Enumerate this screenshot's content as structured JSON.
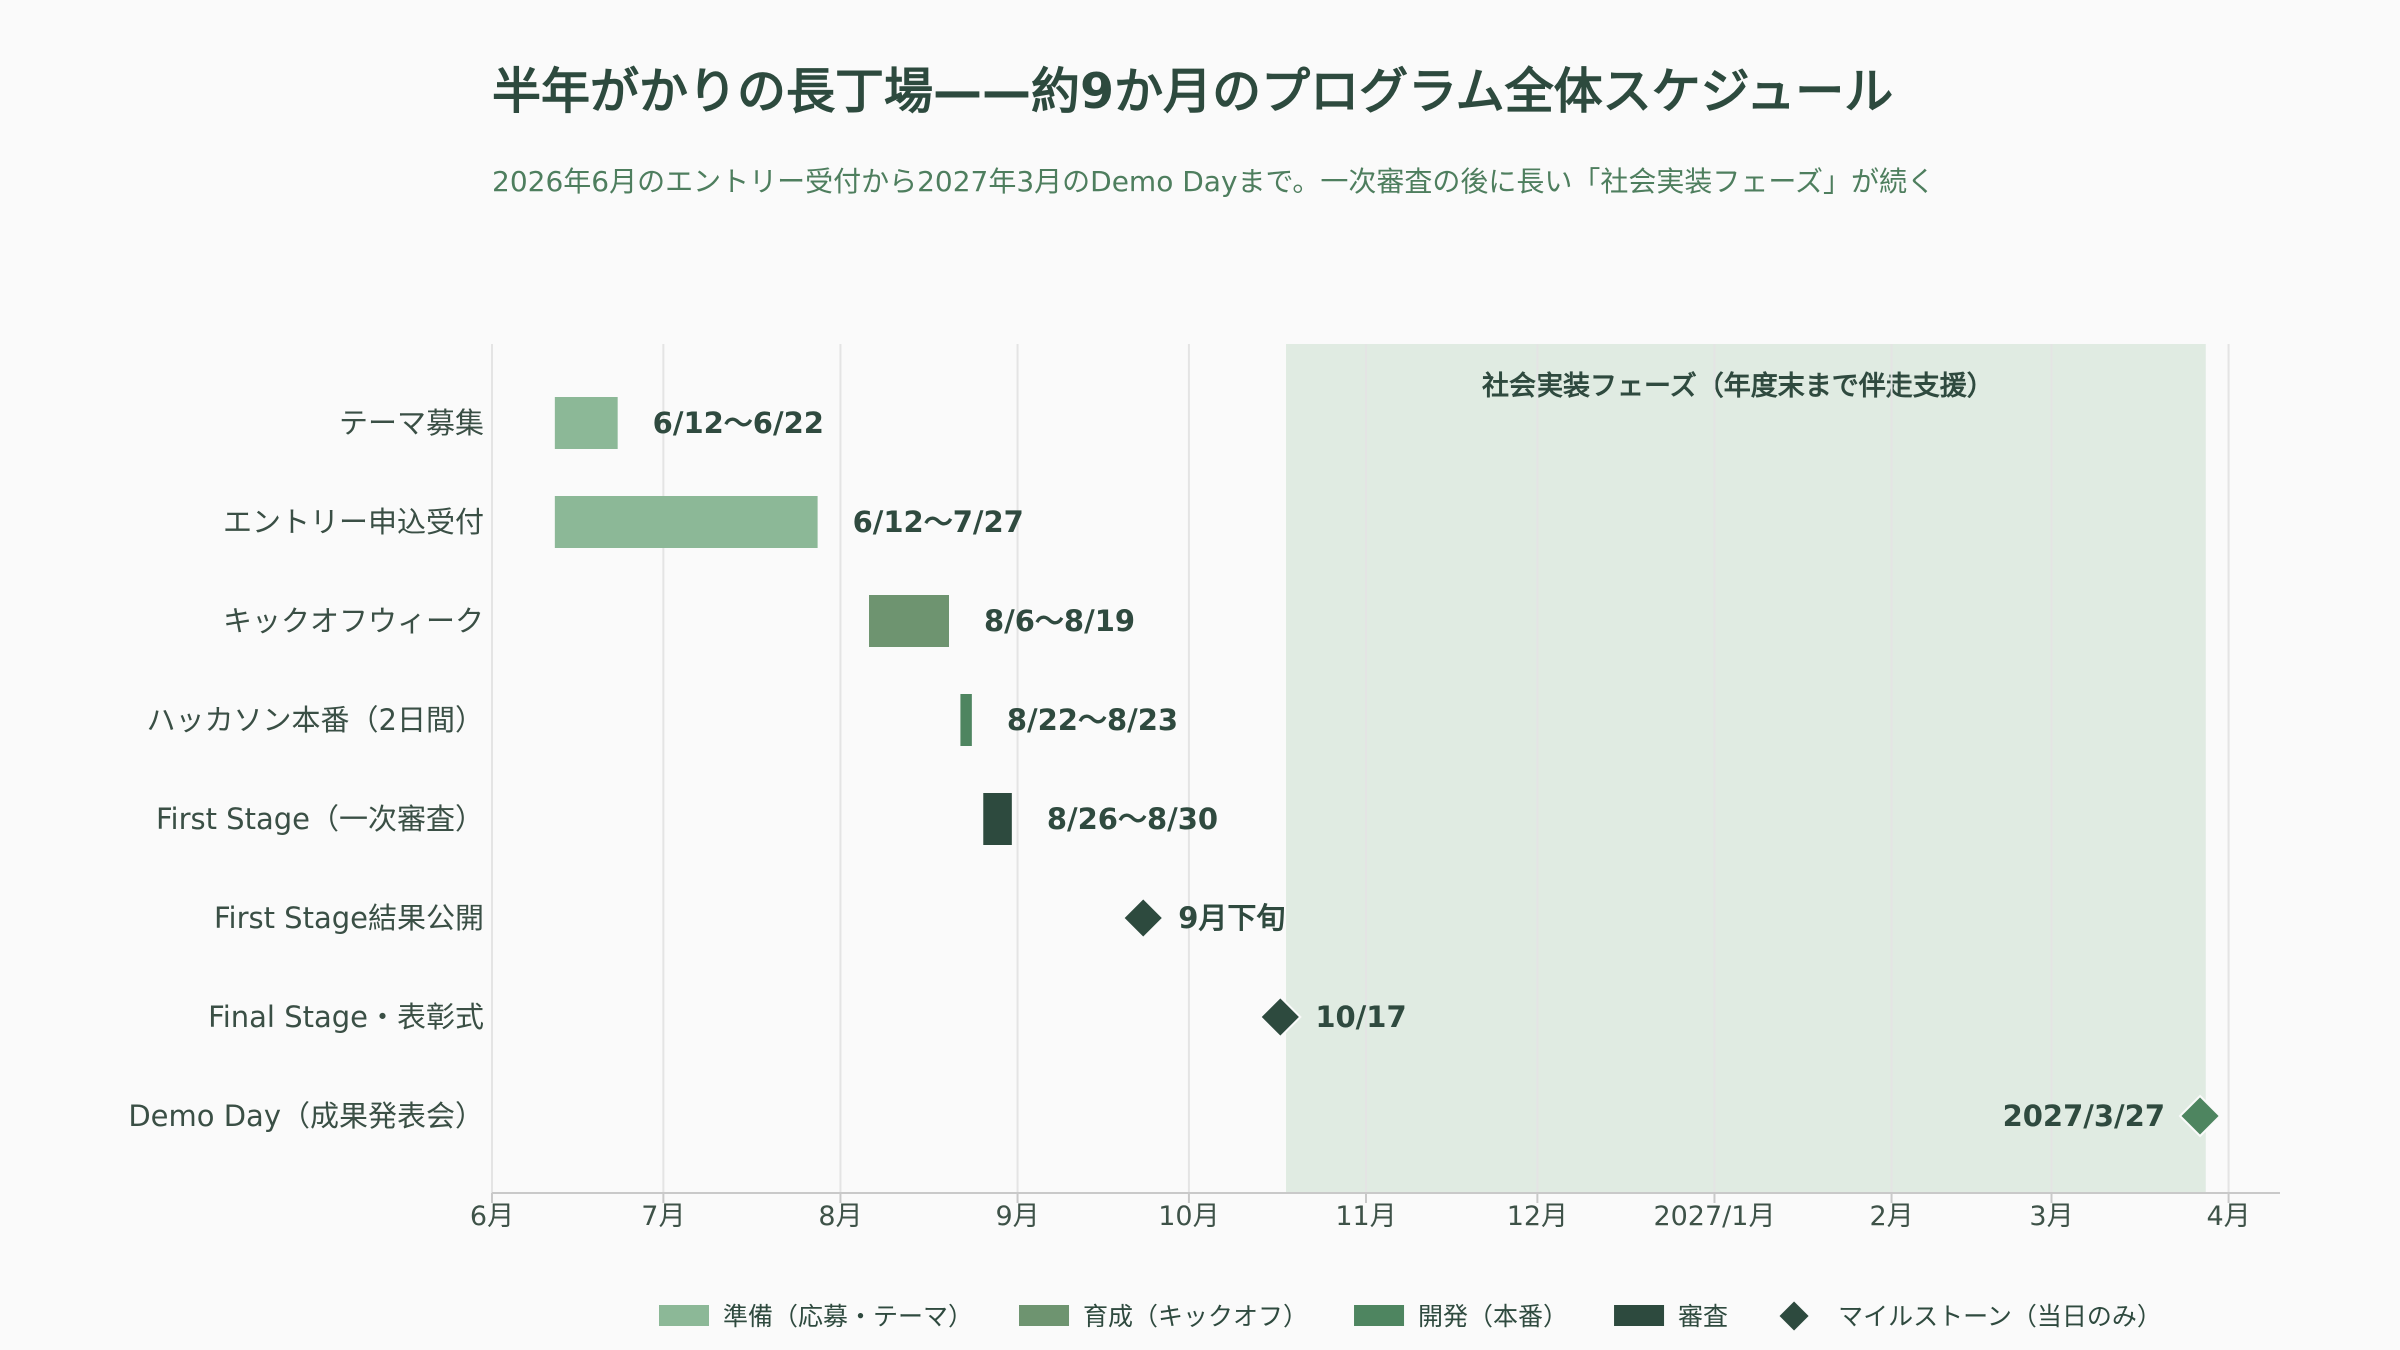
{
  "chart_data": {
    "type": "gantt",
    "title": "半年がかりの長丁場——約9か月のプログラム全体スケジュール",
    "subtitle": "2026年6月のエントリー受付から2027年3月のDemo Dayまで。一次審査の後に長い「社会実装フェーズ」が続く",
    "x_range": [
      "2026-06-01",
      "2027-04-10"
    ],
    "x_ticks": [
      {
        "date": "2026-06-01",
        "label": "6月"
      },
      {
        "date": "2026-07-01",
        "label": "7月"
      },
      {
        "date": "2026-08-01",
        "label": "8月"
      },
      {
        "date": "2026-09-01",
        "label": "9月"
      },
      {
        "date": "2026-10-01",
        "label": "10月"
      },
      {
        "date": "2026-11-01",
        "label": "11月"
      },
      {
        "date": "2026-12-01",
        "label": "12月"
      },
      {
        "date": "2027-01-01",
        "label": "2027/1月"
      },
      {
        "date": "2027-02-01",
        "label": "2月"
      },
      {
        "date": "2027-03-01",
        "label": "3月"
      },
      {
        "date": "2027-04-01",
        "label": "4月"
      }
    ],
    "band": {
      "start": "2026-10-18",
      "end": "2027-03-28",
      "label": "社会実装フェーズ（年度末まで伴走支援）"
    },
    "tasks": [
      {
        "name": "テーマ募集",
        "kind": "bar",
        "start": "2026-06-12",
        "end": "2026-06-22",
        "label": "6/12〜6/22",
        "category": "準備"
      },
      {
        "name": "エントリー申込受付",
        "kind": "bar",
        "start": "2026-06-12",
        "end": "2026-07-27",
        "label": "6/12〜7/27",
        "category": "準備"
      },
      {
        "name": "キックオフウィーク",
        "kind": "bar",
        "start": "2026-08-06",
        "end": "2026-08-19",
        "label": "8/6〜8/19",
        "category": "育成"
      },
      {
        "name": "ハッカソン本番（2日間）",
        "kind": "bar",
        "start": "2026-08-22",
        "end": "2026-08-23",
        "label": "8/22〜8/23",
        "category": "開発"
      },
      {
        "name": "First Stage（一次審査）",
        "kind": "bar",
        "start": "2026-08-26",
        "end": "2026-08-30",
        "label": "8/26〜8/30",
        "category": "審査"
      },
      {
        "name": "First Stage結果公開",
        "kind": "milestone",
        "date": "2026-09-23",
        "label": "9月下旬",
        "category": "審査"
      },
      {
        "name": "Final Stage・表彰式",
        "kind": "milestone",
        "date": "2026-10-17",
        "label": "10/17",
        "category": "審査"
      },
      {
        "name": "Demo Day（成果発表会）",
        "kind": "milestone",
        "date": "2027-03-27",
        "label": "2027/3/27",
        "category": "開発",
        "label_side": "left"
      }
    ],
    "legend": [
      {
        "name": "準備（応募・テーマ）",
        "shape": "rect",
        "color": "#8cb897"
      },
      {
        "name": "育成（キックオフ）",
        "shape": "rect",
        "color": "#6e9470"
      },
      {
        "name": "開発（本番）",
        "shape": "rect",
        "color": "#4e8560"
      },
      {
        "name": "審査",
        "shape": "rect",
        "color": "#2d4a3e"
      },
      {
        "name": "マイルストーン（当日のみ）",
        "shape": "diamond",
        "color": "#2d4a3e"
      }
    ],
    "legend_position": "bottom",
    "grid": "vertical",
    "colors": {
      "準備": "#8cb897",
      "育成": "#6e9470",
      "開発": "#4e8560",
      "審査": "#2d4a3e",
      "band": "#e0ebe2",
      "grid": "#e4e4e4",
      "axis": "#c9c9c9"
    }
  }
}
